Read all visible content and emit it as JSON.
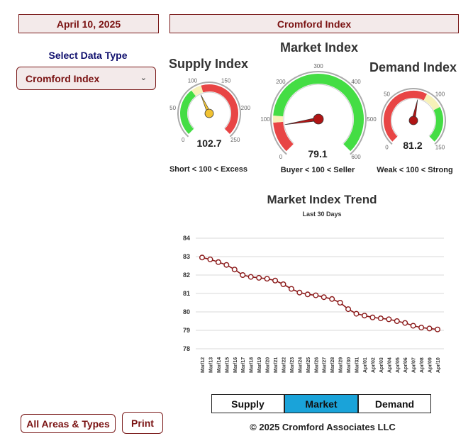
{
  "header": {
    "date": "April 10, 2025",
    "index_name": "Cromford Index"
  },
  "select": {
    "label": "Select Data Type",
    "value": "Cromford Index",
    "chevron": "chevron-down-icon"
  },
  "gauges": {
    "supply": {
      "title": "Supply Index",
      "value": "102.7",
      "caption": "Short < 100 < Excess",
      "ticks": [
        "0",
        "50",
        "100",
        "150",
        "200",
        "250"
      ],
      "min": 0,
      "max": 250,
      "needle": 102.7
    },
    "market": {
      "title": "Market Index",
      "value": "79.1",
      "caption": "Buyer < 100 < Seller",
      "ticks": [
        "0",
        "100",
        "200",
        "300",
        "400",
        "500",
        "600"
      ],
      "min": 0,
      "max": 600,
      "needle": 79.1
    },
    "demand": {
      "title": "Demand Index",
      "value": "81.2",
      "caption": "Weak < 100 < Strong",
      "ticks": [
        "0",
        "50",
        "100",
        "150"
      ],
      "min": 0,
      "max": 150,
      "needle": 81.2
    }
  },
  "colors": {
    "red": "#e84545",
    "green": "#44dd44",
    "yellow": "#f7f1b8",
    "needle_dark": "#b01515",
    "needle_gold": "#f1c232",
    "line": "#8b1a1a",
    "tab_active": "#1aa3d9",
    "brand": "#7a1212"
  },
  "trend": {
    "title": "Market Index Trend",
    "subtitle": "Last 30 Days"
  },
  "chart_data": {
    "type": "line",
    "x": [
      "Mar/12",
      "Mar/13",
      "Mar/14",
      "Mar/15",
      "Mar/16",
      "Mar/17",
      "Mar/18",
      "Mar/19",
      "Mar/20",
      "Mar/21",
      "Mar/22",
      "Mar/23",
      "Mar/24",
      "Mar/25",
      "Mar/26",
      "Mar/27",
      "Mar/28",
      "Mar/29",
      "Mar/30",
      "Mar/31",
      "Apr/01",
      "Apr/02",
      "Apr/03",
      "Apr/04",
      "Apr/05",
      "Apr/06",
      "Apr/07",
      "Apr/08",
      "Apr/09",
      "Apr/10"
    ],
    "series": [
      {
        "values": [
          82.95,
          82.85,
          82.7,
          82.55,
          82.3,
          82.0,
          81.9,
          81.85,
          81.8,
          81.7,
          81.5,
          81.25,
          81.05,
          80.95,
          80.9,
          80.8,
          80.7,
          80.5,
          80.15,
          79.9,
          79.8,
          79.7,
          79.65,
          79.6,
          79.5,
          79.4,
          79.25,
          79.15,
          79.1,
          79.05
        ]
      }
    ],
    "ylim": [
      78,
      84
    ],
    "yticks": [
      "78",
      "79",
      "80",
      "81",
      "82",
      "83",
      "84"
    ],
    "grid": true,
    "legend": "none"
  },
  "tabs": [
    {
      "label": "Supply",
      "active": false
    },
    {
      "label": "Market",
      "active": true
    },
    {
      "label": "Demand",
      "active": false
    }
  ],
  "footer": {
    "all_areas": "All Areas & Types",
    "print": "Print",
    "copyright": "© 2025 Cromford Associates LLC"
  }
}
